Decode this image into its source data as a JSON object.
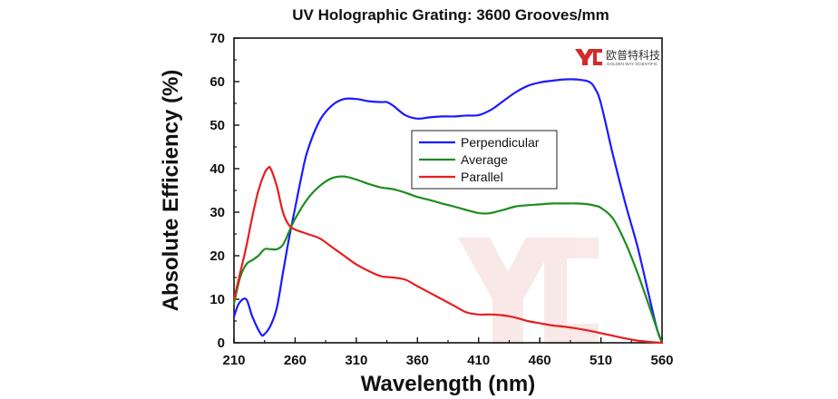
{
  "chart_data": {
    "type": "line",
    "title": "UV Holographic Grating: 3600 Grooves/mm",
    "xlabel": "Wavelength (nm)",
    "ylabel": "Absolute Efficiency (%)",
    "xlim": [
      210,
      560
    ],
    "ylim": [
      0,
      70
    ],
    "xticks": [
      210,
      260,
      310,
      360,
      410,
      460,
      510,
      560
    ],
    "yticks": [
      0,
      10,
      20,
      30,
      40,
      50,
      60,
      70
    ],
    "grid": false,
    "legend_position": "center",
    "series": [
      {
        "name": "Perpendicular",
        "color": "#1a1aff",
        "x": [
          210,
          214,
          220,
          225,
          232,
          235,
          240,
          245,
          250,
          255,
          260,
          265,
          270,
          280,
          290,
          300,
          310,
          320,
          330,
          335,
          340,
          350,
          360,
          370,
          380,
          390,
          400,
          410,
          420,
          430,
          440,
          450,
          460,
          470,
          480,
          490,
          500,
          505,
          510,
          520,
          530,
          540,
          550,
          556,
          560
        ],
        "y": [
          6,
          9,
          10,
          6,
          2,
          2,
          4,
          8,
          16,
          24,
          31,
          38,
          44,
          51,
          54.5,
          56,
          56,
          55.5,
          55.3,
          55.3,
          54.5,
          52.3,
          51.5,
          51.8,
          52,
          52,
          52.2,
          52.3,
          53.5,
          55.5,
          57.5,
          59,
          59.8,
          60.2,
          60.5,
          60.5,
          60,
          58.5,
          55,
          43,
          32,
          22,
          10,
          3,
          0
        ]
      },
      {
        "name": "Average",
        "color": "#1e8c1e",
        "x": [
          210,
          215,
          220,
          225,
          230,
          235,
          240,
          245,
          250,
          255,
          260,
          270,
          280,
          290,
          300,
          310,
          320,
          330,
          340,
          350,
          360,
          370,
          380,
          390,
          400,
          410,
          415,
          420,
          430,
          440,
          450,
          460,
          470,
          480,
          490,
          500,
          505,
          510,
          520,
          530,
          540,
          550,
          556,
          560
        ],
        "y": [
          9,
          15,
          18,
          19,
          20,
          21.5,
          21.5,
          21.5,
          22.5,
          25.5,
          28.5,
          33,
          36,
          37.8,
          38.2,
          37.5,
          36.5,
          35.7,
          35.3,
          34.5,
          33.5,
          32.8,
          32,
          31.3,
          30.5,
          29.8,
          29.7,
          29.8,
          30.5,
          31.3,
          31.6,
          31.8,
          32,
          32,
          32,
          31.8,
          31.5,
          31,
          28.5,
          23,
          16,
          8,
          3,
          0
        ]
      },
      {
        "name": "Parallel",
        "color": "#e81e1e",
        "x": [
          210,
          215,
          220,
          225,
          230,
          235,
          238,
          240,
          245,
          250,
          255,
          260,
          265,
          270,
          280,
          290,
          300,
          310,
          320,
          330,
          340,
          350,
          360,
          370,
          380,
          390,
          400,
          410,
          420,
          430,
          440,
          450,
          460,
          470,
          480,
          490,
          500,
          510,
          520,
          530,
          540,
          550,
          560
        ],
        "y": [
          10,
          16,
          22,
          29,
          35,
          39,
          40.2,
          40,
          36,
          30,
          27,
          26,
          25.5,
          25,
          24,
          22,
          20,
          18,
          16.5,
          15.3,
          15,
          14.5,
          13,
          11.5,
          10,
          8.5,
          7,
          6.5,
          6.5,
          6.3,
          5.8,
          5,
          4.5,
          4,
          3.7,
          3.3,
          2.8,
          2.2,
          1.6,
          1.0,
          0.5,
          0.2,
          0
        ]
      }
    ]
  },
  "logo": {
    "cn_text": "欧普特科技",
    "en_text": "GOLDEN WAY SCIENTIFIC",
    "color": "#d42a2a"
  }
}
